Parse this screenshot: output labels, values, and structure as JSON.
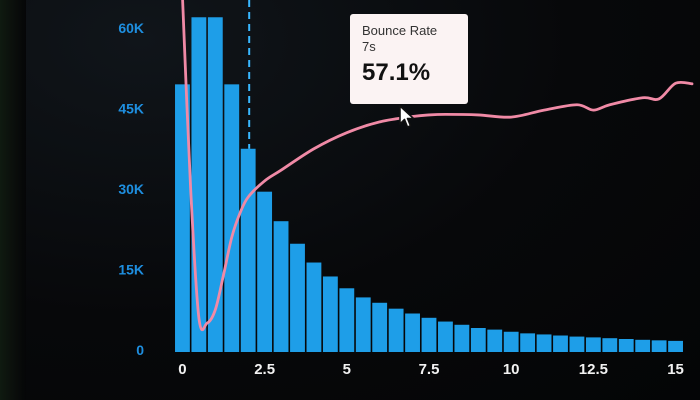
{
  "chart_data": {
    "type": "bar+line",
    "xticks": [
      "0",
      "2.5",
      "5",
      "7.5",
      "10",
      "12.5",
      "15"
    ],
    "xlim": [
      -0.5,
      15.5
    ],
    "yticks": [
      "0",
      "15K",
      "30K",
      "45K",
      "60K"
    ],
    "ylim": [
      0,
      60000
    ],
    "bars": {
      "x": [
        0,
        0.5,
        1,
        1.5,
        2,
        2.5,
        3,
        3.5,
        4,
        4.5,
        5,
        5.5,
        6,
        6.5,
        7,
        7.5,
        8,
        8.5,
        9,
        9.5,
        10,
        10.5,
        11,
        11.5,
        12,
        12.5,
        13,
        13.5,
        14,
        14.5,
        15
      ],
      "values": [
        49500,
        62000,
        62000,
        49500,
        37500,
        29500,
        24000,
        19800,
        16300,
        13700,
        11500,
        9800,
        8800,
        7700,
        6800,
        6000,
        5300,
        4700,
        4100,
        3800,
        3400,
        3100,
        2900,
        2700,
        2500,
        2350,
        2200,
        2050,
        1900,
        1800,
        1700
      ],
      "color": "#1e9ee8"
    },
    "line": {
      "x": [
        0,
        0.25,
        0.5,
        0.75,
        1,
        1.25,
        1.5,
        1.75,
        2,
        2.5,
        3,
        4,
        5,
        6,
        7,
        7.5,
        8,
        9,
        10,
        11,
        12,
        12.5,
        13,
        14,
        14.5,
        15,
        15.5
      ],
      "values": [
        66000,
        30000,
        6000,
        5000,
        7500,
        14000,
        21000,
        25500,
        28500,
        31500,
        33500,
        37500,
        40500,
        42500,
        43500,
        43800,
        43900,
        43800,
        43400,
        44700,
        45700,
        44700,
        45700,
        47000,
        46800,
        49700,
        49600
      ],
      "color": "#f08aa6"
    },
    "marker_x": 2,
    "tooltip": {
      "title": "Bounce Rate",
      "subtitle": "7s",
      "value": "57.1%"
    }
  }
}
